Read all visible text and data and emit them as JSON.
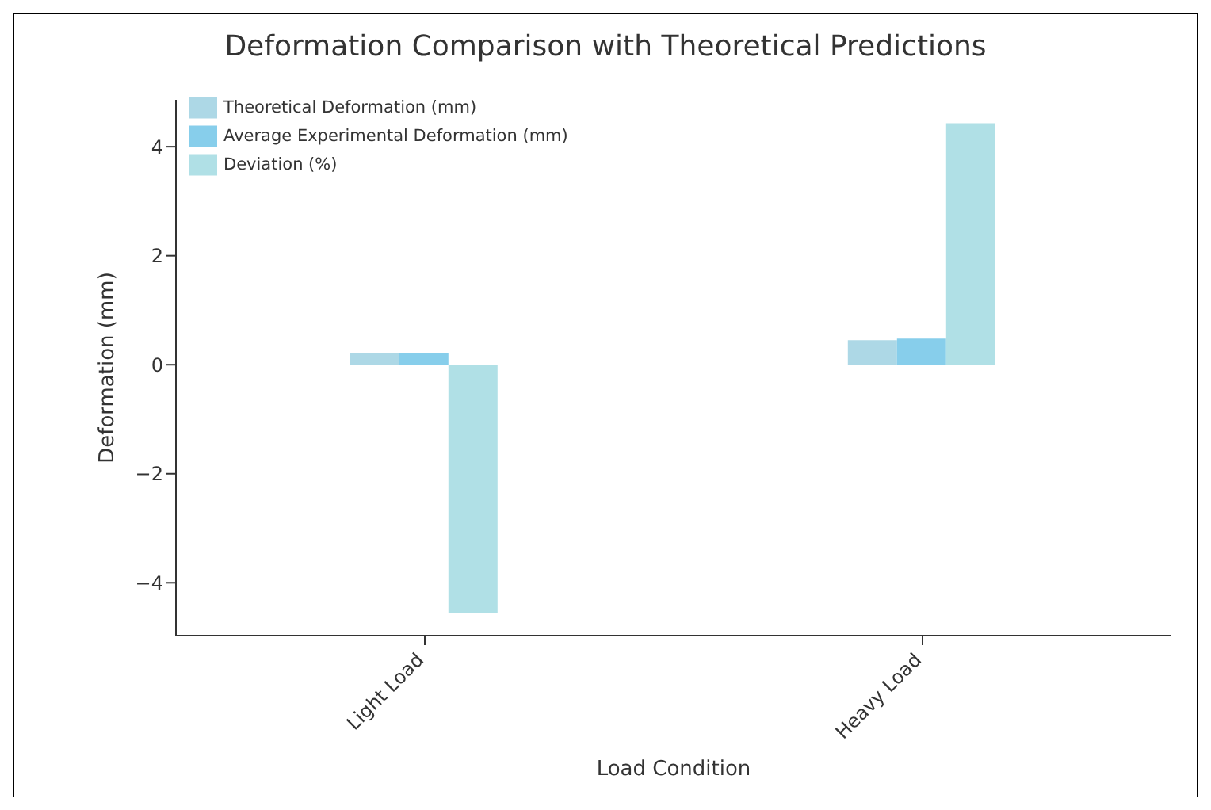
{
  "chart_data": {
    "type": "bar",
    "title": "Deformation Comparison with Theoretical Predictions",
    "xlabel": "Load Condition",
    "ylabel": "Deformation (mm)",
    "categories": [
      "Light Load",
      "Heavy Load"
    ],
    "series": [
      {
        "name": "Theoretical Deformation (mm)",
        "color": "#add8e6",
        "values": [
          0.22,
          0.45
        ]
      },
      {
        "name": "Average Experimental Deformation (mm)",
        "color": "#87ceeb",
        "values": [
          0.22,
          0.48
        ]
      },
      {
        "name": "Deviation (%)",
        "color": "#b0e0e6",
        "values": [
          -4.55,
          4.43
        ]
      }
    ],
    "ylim": [
      -4.97,
      4.86
    ],
    "yticks": [
      -4,
      -2,
      0,
      2,
      4
    ],
    "grid": false,
    "legend": "top left"
  }
}
